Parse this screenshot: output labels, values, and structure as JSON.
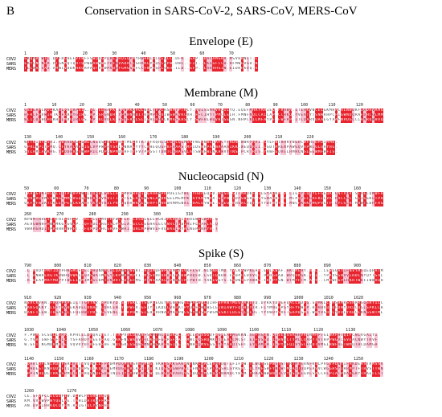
{
  "panel_label": "B",
  "title": "Conservation in SARS-CoV-2, SARS-CoV, MERS-CoV",
  "species": [
    "COV2",
    "SARS",
    "MERS"
  ],
  "sections": [
    {
      "title": "Envelope (E)",
      "blocks": [
        {
          "ruler": [
            "1",
            "10",
            "20",
            "30",
            "40",
            "50",
            "60",
            "70"
          ],
          "len": 82,
          "seed": 3
        }
      ]
    },
    {
      "title": "Membrane (M)",
      "blocks": [
        {
          "ruler": [
            "1",
            "10",
            "20",
            "30",
            "40",
            "50",
            "60",
            "70",
            "80",
            "90",
            "100",
            "110",
            "120"
          ],
          "len": 126,
          "seed": 7
        },
        {
          "ruler": [
            "130",
            "140",
            "150",
            "160",
            "170",
            "180",
            "190",
            "200",
            "210",
            "220"
          ],
          "len": 110,
          "seed": 11
        }
      ]
    },
    {
      "title": "Nucleocapsid (N)",
      "blocks": [
        {
          "ruler": [
            "50",
            "60",
            "70",
            "80",
            "90",
            "100",
            "110",
            "120",
            "130",
            "140",
            "150",
            "160"
          ],
          "len": 126,
          "seed": 17
        },
        {
          "ruler": [
            "260",
            "270",
            "280",
            "290",
            "300",
            "310"
          ],
          "len": 68,
          "seed": 23
        }
      ]
    },
    {
      "title": "Spike (S)",
      "blocks": [
        {
          "ruler": [
            "790",
            "800",
            "810",
            "820",
            "830",
            "840",
            "850",
            "860",
            "870",
            "880",
            "890",
            "900"
          ],
          "len": 126,
          "seed": 29
        },
        {
          "ruler": [
            "910",
            "920",
            "930",
            "940",
            "950",
            "960",
            "970",
            "980",
            "990",
            "1000",
            "1010",
            "1020"
          ],
          "len": 126,
          "seed": 31
        },
        {
          "ruler": [
            "1030",
            "1040",
            "1050",
            "1060",
            "1070",
            "1080",
            "1090",
            "1100",
            "1110",
            "1120",
            "1130"
          ],
          "len": 124,
          "seed": 37
        },
        {
          "ruler": [
            "1140",
            "1150",
            "1160",
            "1170",
            "1180",
            "1190",
            "1200",
            "1210",
            "1220",
            "1230",
            "1240",
            "1250"
          ],
          "len": 126,
          "seed": 41
        },
        {
          "ruler": [
            "1260",
            "1270"
          ],
          "len": 30,
          "seed": 43
        }
      ]
    }
  ],
  "colors": {
    "conserved": "#e8252f",
    "similar": "#f6c6d6"
  }
}
